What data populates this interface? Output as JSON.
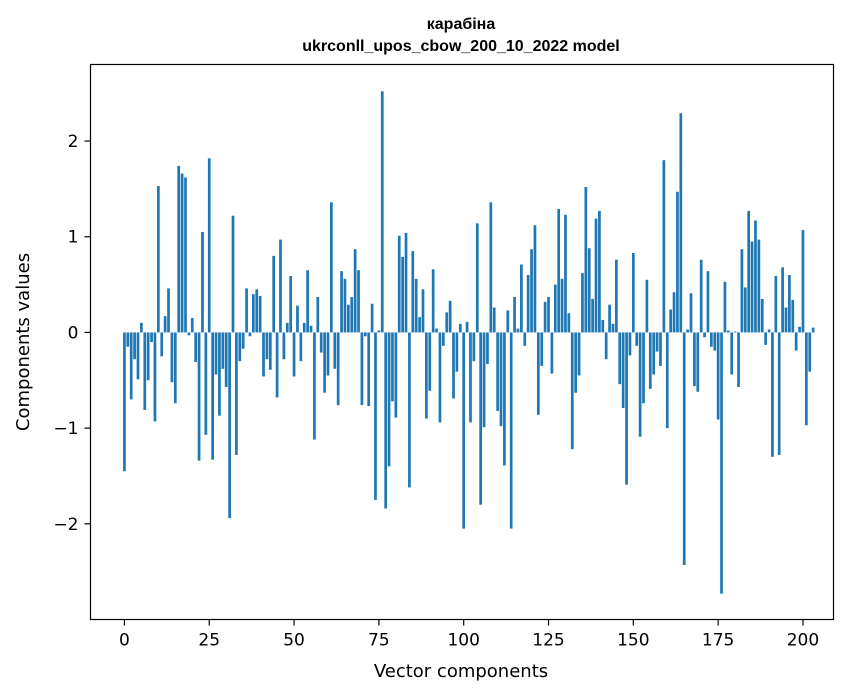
{
  "chart_data": {
    "type": "bar",
    "title": "карабіна",
    "subtitle": "ukrconll_upos_cbow_200_10_2022 model",
    "xlabel": "Vector components",
    "ylabel": "Components values",
    "xlim": [
      -10,
      209
    ],
    "ylim": [
      -3.0,
      2.8
    ],
    "xticks": [
      0,
      25,
      50,
      75,
      100,
      125,
      150,
      175,
      200
    ],
    "yticks": [
      -2,
      -1,
      0,
      1,
      2
    ],
    "xtick_labels": [
      "0",
      "25",
      "50",
      "75",
      "100",
      "125",
      "150",
      "175",
      "200"
    ],
    "ytick_labels": [
      "−2",
      "−1",
      "0",
      "1",
      "2"
    ],
    "bar_color": "#1f77b4",
    "grid": false,
    "values": [
      -1.45,
      -0.15,
      -0.7,
      -0.28,
      -0.49,
      0.1,
      -0.81,
      -0.5,
      -0.1,
      -0.93,
      1.53,
      -0.25,
      0.17,
      0.46,
      -0.52,
      -0.74,
      1.74,
      1.66,
      1.62,
      -0.03,
      0.15,
      -0.31,
      -1.34,
      1.05,
      -1.07,
      1.82,
      -1.33,
      -0.44,
      -0.87,
      -0.38,
      -0.57,
      -1.94,
      1.22,
      -1.28,
      -0.3,
      -0.17,
      0.46,
      -0.04,
      0.4,
      0.45,
      0.38,
      -0.46,
      -0.28,
      -0.39,
      0.8,
      -0.68,
      0.97,
      -0.28,
      0.1,
      0.59,
      -0.46,
      0.28,
      -0.3,
      0.1,
      0.65,
      0.07,
      -1.12,
      0.37,
      -0.21,
      -0.63,
      -0.45,
      1.36,
      -0.38,
      -0.76,
      0.64,
      0.56,
      0.29,
      0.37,
      0.87,
      0.65,
      -0.76,
      -0.04,
      -0.77,
      0.3,
      -1.75,
      0.02,
      2.52,
      -1.84,
      -1.4,
      -0.72,
      -0.89,
      1.01,
      0.79,
      1.04,
      -1.62,
      0.85,
      0.56,
      0.16,
      0.45,
      -0.9,
      -0.61,
      0.66,
      0.04,
      -0.94,
      -0.14,
      0.21,
      0.33,
      -0.69,
      -0.41,
      0.09,
      -2.05,
      0.11,
      -0.94,
      -0.3,
      1.14,
      -1.8,
      -0.99,
      -0.33,
      1.36,
      0.26,
      -0.82,
      -0.98,
      -1.39,
      0.23,
      -2.05,
      0.37,
      0.04,
      0.71,
      -0.14,
      0.6,
      0.87,
      1.12,
      -0.86,
      -0.35,
      0.32,
      0.37,
      -0.43,
      0.5,
      1.29,
      0.56,
      1.23,
      0.2,
      -1.22,
      -0.63,
      -0.45,
      0.62,
      1.52,
      0.88,
      0.35,
      1.19,
      1.27,
      0.13,
      -0.28,
      0.29,
      0.09,
      0.76,
      -0.54,
      -0.79,
      -1.59,
      -0.24,
      0.83,
      -0.14,
      -1.09,
      -0.74,
      0.55,
      -0.59,
      -0.44,
      -0.2,
      -0.35,
      1.8,
      -1.0,
      0.24,
      0.42,
      1.47,
      2.29,
      -2.43,
      0.03,
      0.41,
      -0.56,
      -0.62,
      0.76,
      -0.05,
      0.64,
      -0.15,
      -0.19,
      -0.91,
      -2.73,
      0.53,
      0.02,
      -0.44,
      0.01,
      -0.57,
      0.87,
      0.47,
      1.27,
      0.95,
      1.17,
      0.97,
      0.35,
      -0.13,
      0.03,
      -1.3,
      0.59,
      -1.28,
      0.68,
      0.26,
      0.6,
      0.34,
      -0.19,
      0.06,
      1.07,
      -0.97,
      -0.41,
      0.05
    ]
  }
}
